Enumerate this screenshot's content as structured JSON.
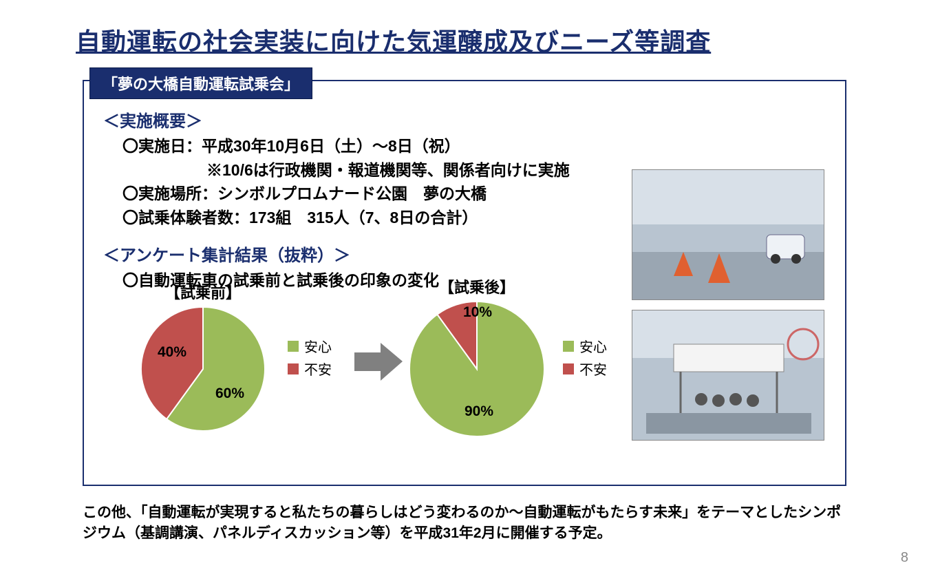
{
  "title": "自動運転の社会実装に向けた気運醸成及びニーズ等調査",
  "tab": "「夢の大橋自動運転試乗会」",
  "overview": {
    "heading": "＜実施概要＞",
    "lines": [
      "〇実施日：平成30年10月6日（土）〜8日（祝）",
      "※10/6は行政機関・報道機関等、関係者向けに実施",
      "〇実施場所：シンボルプロムナード公園　夢の大橋",
      "〇試乗体験者数：173組　315人（7、8日の合計）"
    ]
  },
  "survey": {
    "heading": "＜アンケート集計結果（抜粋）＞",
    "sub": "〇自動運転車の試乗前と試乗後の印象の変化"
  },
  "charts": {
    "before": {
      "title": "【試乗前】",
      "type": "pie",
      "slices": [
        {
          "label": "安心",
          "value": 60,
          "pctLabel": "60%",
          "color": "#9bbb59"
        },
        {
          "label": "不安",
          "value": 40,
          "pctLabel": "40%",
          "color": "#c0504d"
        }
      ],
      "radius": 90,
      "startAngle": -90,
      "border_color": "#ffffff",
      "border_width": 2
    },
    "after": {
      "title": "【試乗後】",
      "type": "pie",
      "slices": [
        {
          "label": "安心",
          "value": 90,
          "pctLabel": "90%",
          "color": "#9bbb59"
        },
        {
          "label": "不安",
          "value": 10,
          "pctLabel": "10%",
          "color": "#c0504d"
        }
      ],
      "radius": 98,
      "startAngle": -90,
      "border_color": "#ffffff",
      "border_width": 2
    },
    "legend": [
      {
        "label": "安心",
        "color": "#9bbb59"
      },
      {
        "label": "不安",
        "color": "#c0504d"
      }
    ],
    "arrow_color": "#808080"
  },
  "photos": {
    "photo1_alt": "自動運転車両 試乗コース",
    "photo2_alt": "試乗会 待機テント"
  },
  "footer": "この他、「自動運転が実現すると私たちの暮らしはどう変わるのか〜自動運転がもたらす未来」をテーマとしたシンポジウム（基調講演、パネルディスカッション等）を平成31年2月に開催する予定。",
  "page_number": "8",
  "colors": {
    "title_color": "#1a2e6e",
    "tab_bg": "#1a2e6e",
    "tab_text": "#ffffff",
    "box_border": "#1a2e6e",
    "body_text": "#000000",
    "page_bg": "#ffffff"
  },
  "typography": {
    "title_fontsize": 36,
    "tab_fontsize": 22,
    "heading_fontsize": 24,
    "body_fontsize": 23,
    "chart_title_fontsize": 22,
    "legend_fontsize": 20,
    "footer_fontsize": 21
  }
}
